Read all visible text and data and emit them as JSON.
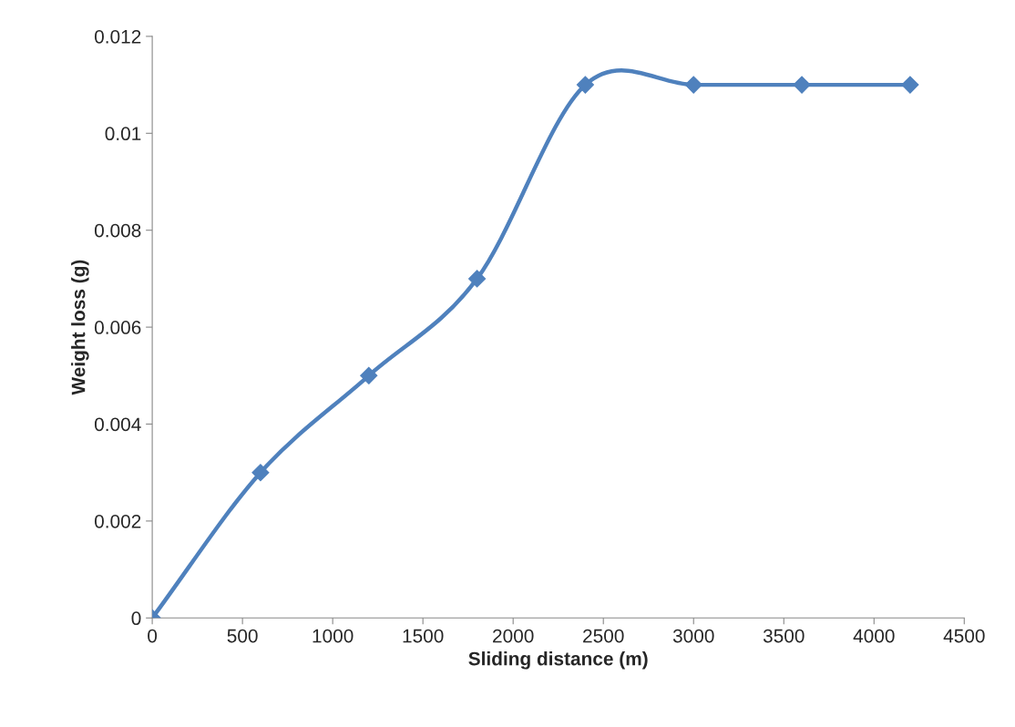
{
  "chart_data": {
    "type": "line",
    "xlabel": "Sliding distance (m)",
    "ylabel": "Weight loss (g)",
    "x": [
      0,
      600,
      1200,
      1800,
      2400,
      3000,
      3600,
      4200
    ],
    "series": [
      {
        "color": "#4f81bd",
        "values": [
          0,
          0.003,
          0.005,
          0.007,
          0.011,
          0.011,
          0.011,
          0.011
        ]
      }
    ],
    "xlim": [
      0,
      4500
    ],
    "xticks": [
      0,
      500,
      1000,
      1500,
      2000,
      2500,
      3000,
      3500,
      4000,
      4500
    ],
    "ylim": [
      0,
      0.012
    ],
    "yticks": [
      0,
      0.002,
      0.004,
      0.006,
      0.008,
      0.01,
      0.012
    ],
    "marker": "diamond",
    "line_style": "solid",
    "grid": false,
    "legend": false
  }
}
